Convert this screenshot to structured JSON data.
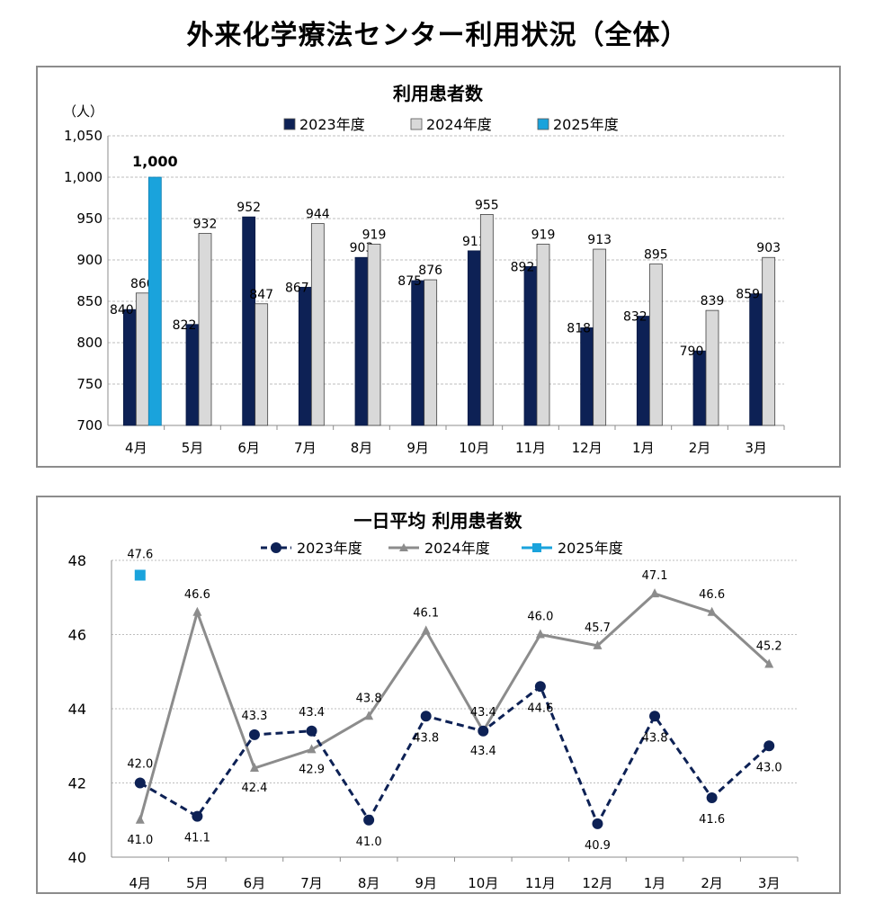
{
  "page": {
    "title": "外来化学療法センター利用状況（全体）"
  },
  "colors": {
    "s2023": "#0d2155",
    "s2024_fill": "#d9d9d9",
    "s2024_line": "#8c8c8c",
    "s2025": "#1aa3dc",
    "grid": "#bdbdbd",
    "frame": "#8c8c8c"
  },
  "chart_data": [
    {
      "type": "bar",
      "title": "利用患者数",
      "ylabel": "（人）",
      "ylim": [
        700,
        1050
      ],
      "yticks": [
        "700",
        "750",
        "800",
        "850",
        "900",
        "950",
        "1,000",
        "1,050"
      ],
      "categories": [
        "4月",
        "5月",
        "6月",
        "7月",
        "8月",
        "9月",
        "10月",
        "11月",
        "12月",
        "1月",
        "2月",
        "3月"
      ],
      "legend_position": "top",
      "grid": true,
      "series": [
        {
          "name": "2023年度",
          "values": [
            840,
            822,
            952,
            867,
            903,
            875,
            911,
            892,
            818,
            832,
            790,
            859
          ]
        },
        {
          "name": "2024年度",
          "values": [
            860,
            932,
            847,
            944,
            919,
            876,
            955,
            919,
            913,
            895,
            839,
            903
          ]
        },
        {
          "name": "2025年度",
          "values": [
            1000,
            null,
            null,
            null,
            null,
            null,
            null,
            null,
            null,
            null,
            null,
            null
          ],
          "labels": [
            "1,000",
            null,
            null,
            null,
            null,
            null,
            null,
            null,
            null,
            null,
            null,
            null
          ]
        }
      ]
    },
    {
      "type": "line",
      "title": "一日平均 利用患者数",
      "ylim": [
        40,
        48
      ],
      "yticks": [
        "40",
        "42",
        "44",
        "46",
        "48"
      ],
      "categories": [
        "4月",
        "5月",
        "6月",
        "7月",
        "8月",
        "9月",
        "10月",
        "11月",
        "12月",
        "1月",
        "2月",
        "3月"
      ],
      "legend_position": "top",
      "grid": true,
      "series": [
        {
          "name": "2023年度",
          "values": [
            42.0,
            41.1,
            43.3,
            43.4,
            41.0,
            43.8,
            43.4,
            44.6,
            40.9,
            43.8,
            41.6,
            43.0
          ]
        },
        {
          "name": "2024年度",
          "values": [
            41.0,
            46.6,
            42.4,
            42.9,
            43.8,
            46.1,
            43.4,
            46.0,
            45.7,
            47.1,
            46.6,
            45.2
          ]
        },
        {
          "name": "2025年度",
          "values": [
            47.6,
            null,
            null,
            null,
            null,
            null,
            null,
            null,
            null,
            null,
            null,
            null
          ]
        }
      ]
    }
  ]
}
